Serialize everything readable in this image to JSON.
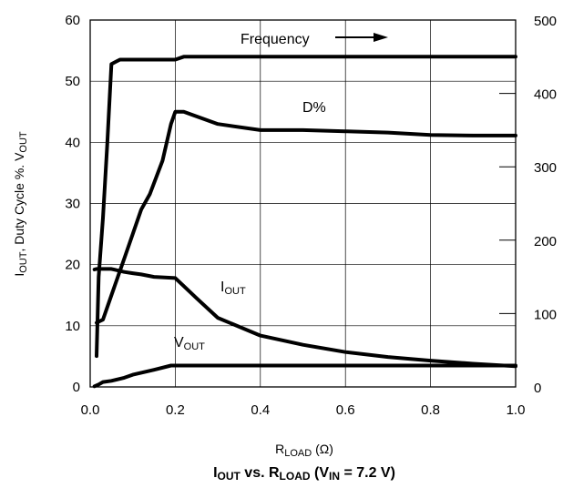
{
  "chart_data": {
    "type": "line",
    "title": {
      "main": "I",
      "main_sub": "OUT",
      "mid": " vs. R",
      "mid_sub": "LOAD",
      "paren": " (V",
      "paren_sub": "IN",
      "end": " = 7.2 V)"
    },
    "xlabel": {
      "main": "R",
      "sub": "LOAD",
      "unit": " (Ω)"
    },
    "ylabel": {
      "p1": "I",
      "p1_sub": "OUT",
      "p2": ", Duty Cycle %. V",
      "p2_sub": "OUT"
    },
    "xlim": [
      0,
      1.0
    ],
    "ylim": [
      0,
      60
    ],
    "y2lim": [
      0,
      500
    ],
    "x_ticks": [
      "0.0",
      "0.2",
      "0.4",
      "0.6",
      "0.8",
      "1.0"
    ],
    "y_ticks": [
      "0",
      "10",
      "20",
      "30",
      "40",
      "50",
      "60"
    ],
    "y2_ticks": [
      "0",
      "100",
      "200",
      "300",
      "400",
      "500"
    ],
    "grid": true,
    "annotations": {
      "frequency": "Frequency",
      "duty": "D%",
      "iout": {
        "main": "I",
        "sub": "OUT"
      },
      "vout": {
        "main": "V",
        "sub": "OUT"
      }
    },
    "series": [
      {
        "key": "frequency",
        "axis": "right",
        "x": [
          0.015,
          0.02,
          0.03,
          0.04,
          0.05,
          0.06,
          0.07,
          0.1,
          0.15,
          0.2,
          0.22,
          0.3,
          0.5,
          0.7,
          0.9,
          1.0
        ],
        "y": [
          42,
          150,
          230,
          330,
          440,
          443,
          446,
          446,
          446,
          446,
          450,
          450,
          450,
          450,
          450,
          450
        ]
      },
      {
        "key": "duty",
        "axis": "left",
        "x": [
          0.015,
          0.03,
          0.05,
          0.08,
          0.1,
          0.12,
          0.14,
          0.17,
          0.19,
          0.2,
          0.22,
          0.3,
          0.4,
          0.5,
          0.6,
          0.7,
          0.8,
          0.9,
          1.0
        ],
        "y": [
          10.5,
          11,
          15,
          21,
          25,
          29,
          31.5,
          37,
          43,
          45,
          45,
          43,
          42,
          42,
          41.8,
          41.6,
          41.2,
          41.1,
          41.1
        ]
      },
      {
        "key": "iout",
        "axis": "left",
        "x": [
          0.01,
          0.015,
          0.05,
          0.08,
          0.1,
          0.12,
          0.15,
          0.2,
          0.22,
          0.25,
          0.3,
          0.4,
          0.5,
          0.6,
          0.7,
          0.8,
          0.9,
          1.0
        ],
        "y": [
          19.2,
          19.3,
          19.3,
          18.8,
          18.6,
          18.4,
          18.0,
          17.8,
          16.5,
          14.5,
          11.3,
          8.4,
          6.9,
          5.7,
          4.9,
          4.3,
          3.8,
          3.4
        ]
      },
      {
        "key": "vout",
        "axis": "left",
        "x": [
          0.01,
          0.02,
          0.03,
          0.05,
          0.08,
          0.1,
          0.15,
          0.19,
          0.2,
          0.3,
          0.5,
          0.8,
          1.0
        ],
        "y": [
          0.1,
          0.4,
          0.8,
          1.0,
          1.5,
          2.0,
          2.8,
          3.5,
          3.5,
          3.5,
          3.5,
          3.5,
          3.5
        ]
      }
    ]
  }
}
